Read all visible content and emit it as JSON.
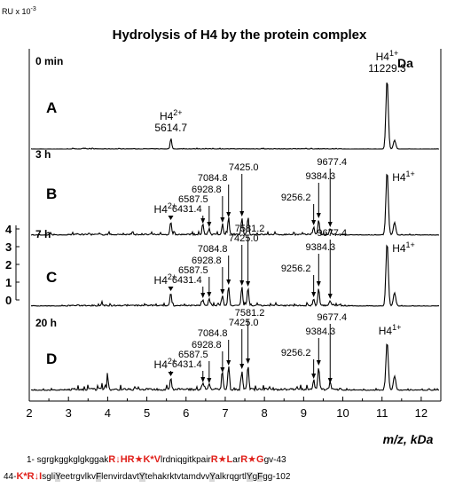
{
  "chart_data": {
    "type": "line",
    "title": "Hydrolysis of H4 by the protein complex",
    "ylabel": "RU x 10",
    "ylabel_exp": "-3",
    "units_label": "Da",
    "xlabel": "m/z, kDa",
    "xlim": [
      2,
      12.5
    ],
    "xticks": [
      2,
      3,
      4,
      5,
      6,
      7,
      8,
      9,
      10,
      11,
      12
    ],
    "xtick_labels": [
      "2",
      "3",
      "4",
      "5",
      "6",
      "7",
      "8",
      "9",
      "10",
      "11",
      "12"
    ],
    "scale_bar": {
      "ticks": [
        0,
        1,
        2,
        3,
        4
      ],
      "labels": [
        "0",
        "1",
        "2",
        "3",
        "4"
      ]
    },
    "panels": [
      {
        "letter": "A",
        "time": "0 min",
        "peaks": [
          {
            "x": 5.615,
            "height": 0.6,
            "w": 0.02
          },
          {
            "x": 11.13,
            "height": 3.95,
            "w": 0.03
          },
          {
            "x": 11.32,
            "height": 0.5,
            "w": 0.03
          }
        ],
        "peak_labels": [
          {
            "text": "H4",
            "sup": "2+",
            "x": 5.615,
            "lines": [
              "5614.7"
            ]
          },
          {
            "text": "H4",
            "sup": "1+",
            "x": 11.13,
            "lines": [
              "11229.3"
            ],
            "big": true
          }
        ],
        "arrows": []
      },
      {
        "letter": "B",
        "time": "3 h",
        "peaks": [
          {
            "x": 2.55,
            "height": 0.18,
            "w": 0.01
          },
          {
            "x": 5.61,
            "height": 0.75,
            "w": 0.02
          },
          {
            "x": 6.43,
            "height": 0.55,
            "w": 0.02
          },
          {
            "x": 6.59,
            "height": 0.35,
            "w": 0.02
          },
          {
            "x": 6.93,
            "height": 0.6,
            "w": 0.02
          },
          {
            "x": 7.085,
            "height": 0.9,
            "w": 0.02
          },
          {
            "x": 7.425,
            "height": 0.95,
            "w": 0.02
          },
          {
            "x": 7.58,
            "height": 0.9,
            "w": 0.02
          },
          {
            "x": 9.256,
            "height": 0.45,
            "w": 0.02
          },
          {
            "x": 9.384,
            "height": 0.85,
            "w": 0.02
          },
          {
            "x": 9.677,
            "height": 0.35,
            "w": 0.02
          },
          {
            "x": 11.13,
            "height": 3.6,
            "w": 0.03
          },
          {
            "x": 11.32,
            "height": 0.7,
            "w": 0.03
          }
        ],
        "peak_labels": [
          {
            "text": "H4",
            "sup": "2+",
            "x": 5.47,
            "dy": 0
          },
          {
            "text": "H4",
            "sup": "1+",
            "x": 11.55,
            "dy": 0
          }
        ],
        "arrows": [
          {
            "label": "6431.4",
            "x": 6.43
          },
          {
            "label": "6587.5",
            "x": 6.59
          },
          {
            "label": "6928.8",
            "x": 6.93
          },
          {
            "label": "7084.8",
            "x": 7.085
          },
          {
            "label": "7425.0",
            "x": 7.425
          },
          {
            "label": "9256.2",
            "x": 9.256
          },
          {
            "label": "9384.3",
            "x": 9.384
          },
          {
            "label": "9677.4",
            "x": 9.677
          }
        ]
      },
      {
        "letter": "C",
        "time": "7 h",
        "peaks": [
          {
            "x": 3.85,
            "height": 0.3,
            "w": 0.01
          },
          {
            "x": 5.61,
            "height": 0.75,
            "w": 0.02
          },
          {
            "x": 6.43,
            "height": 0.35,
            "w": 0.02
          },
          {
            "x": 6.59,
            "height": 0.4,
            "w": 0.02
          },
          {
            "x": 6.93,
            "height": 0.55,
            "w": 0.02
          },
          {
            "x": 7.085,
            "height": 1.1,
            "w": 0.02
          },
          {
            "x": 7.425,
            "height": 1.05,
            "w": 0.02
          },
          {
            "x": 7.58,
            "height": 1.0,
            "w": 0.02
          },
          {
            "x": 9.256,
            "height": 0.4,
            "w": 0.02
          },
          {
            "x": 9.384,
            "height": 1.0,
            "w": 0.02
          },
          {
            "x": 9.677,
            "height": 0.3,
            "w": 0.02
          },
          {
            "x": 11.13,
            "height": 3.6,
            "w": 0.03
          },
          {
            "x": 11.32,
            "height": 0.75,
            "w": 0.03
          }
        ],
        "peak_labels": [
          {
            "text": "H4",
            "sup": "2+",
            "x": 5.47
          },
          {
            "text": "H4",
            "sup": "1+",
            "x": 11.55
          }
        ],
        "arrows": [
          {
            "label": "6431.4",
            "x": 6.43
          },
          {
            "label": "6587.5",
            "x": 6.59
          },
          {
            "label": "6928.8",
            "x": 6.93
          },
          {
            "label": "7084.8",
            "x": 7.085
          },
          {
            "label": "7425.0",
            "x": 7.425
          },
          {
            "label": "7581.2",
            "x": 7.58
          },
          {
            "label": "9256.2",
            "x": 9.256
          },
          {
            "label": "9384.3",
            "x": 9.384
          },
          {
            "label": "9677.4",
            "x": 9.677
          }
        ]
      },
      {
        "letter": "D",
        "time": "20 h",
        "peaks": [
          {
            "x": 3.75,
            "height": 0.3,
            "w": 0.01
          },
          {
            "x": 3.85,
            "height": 0.45,
            "w": 0.01
          },
          {
            "x": 4.0,
            "height": 1.3,
            "w": 0.01
          },
          {
            "x": 4.7,
            "height": 0.25,
            "w": 0.01
          },
          {
            "x": 5.61,
            "height": 0.7,
            "w": 0.02
          },
          {
            "x": 6.43,
            "height": 0.35,
            "w": 0.02
          },
          {
            "x": 6.59,
            "height": 0.3,
            "w": 0.02
          },
          {
            "x": 6.93,
            "height": 0.9,
            "w": 0.02
          },
          {
            "x": 7.085,
            "height": 1.3,
            "w": 0.02
          },
          {
            "x": 7.425,
            "height": 1.1,
            "w": 0.02
          },
          {
            "x": 7.58,
            "height": 1.4,
            "w": 0.02
          },
          {
            "x": 9.256,
            "height": 0.55,
            "w": 0.02
          },
          {
            "x": 9.384,
            "height": 1.3,
            "w": 0.02
          },
          {
            "x": 9.677,
            "height": 0.3,
            "w": 0.02
          },
          {
            "x": 11.13,
            "height": 2.75,
            "w": 0.03
          },
          {
            "x": 11.32,
            "height": 0.8,
            "w": 0.03
          }
        ],
        "peak_labels": [
          {
            "text": "H4",
            "sup": "2+",
            "x": 5.47
          },
          {
            "text": "H4",
            "sup": "1+",
            "x": 11.2
          }
        ],
        "arrows": [
          {
            "label": "6431.4",
            "x": 6.43
          },
          {
            "label": "6587.5",
            "x": 6.59
          },
          {
            "label": "6928.8",
            "x": 6.93
          },
          {
            "label": "7084.8",
            "x": 7.085
          },
          {
            "label": "7425.0",
            "x": 7.425
          },
          {
            "label": "7581.2",
            "x": 7.58
          },
          {
            "label": "9256.2",
            "x": 9.256
          },
          {
            "label": "9384.3",
            "x": 9.384
          },
          {
            "label": "9677.4",
            "x": 9.677
          }
        ]
      }
    ]
  },
  "sequence": {
    "line1": [
      {
        "t": "1-  sgrgkggkglgkggak",
        "s": "n"
      },
      {
        "t": "R↓HR★K*V",
        "s": "r"
      },
      {
        "t": "lrdniqgitkpair",
        "s": "n"
      },
      {
        "t": "R★L",
        "s": "r"
      },
      {
        "t": "ar",
        "s": "n"
      },
      {
        "t": "R★G",
        "s": "r"
      },
      {
        "t": "gv-43",
        "s": "n"
      }
    ],
    "line2": [
      {
        "t": "44-",
        "s": "n"
      },
      {
        "t": "K*R↓I",
        "s": "r"
      },
      {
        "t": "sgli",
        "s": "n"
      },
      {
        "t": "Y",
        "s": "h"
      },
      {
        "t": "eetrgvlkv",
        "s": "n"
      },
      {
        "t": "F",
        "s": "h"
      },
      {
        "t": "lenvirdavt",
        "s": "n"
      },
      {
        "t": "Y",
        "s": "h"
      },
      {
        "t": "tehakrktvtamdvv",
        "s": "n"
      },
      {
        "t": "Y",
        "s": "h"
      },
      {
        "t": "alkrqgrtl",
        "s": "n"
      },
      {
        "t": "Y",
        "s": "h"
      },
      {
        "t": "g",
        "s": "n"
      },
      {
        "t": "F",
        "s": "h"
      },
      {
        "t": "gg-102",
        "s": "n"
      }
    ]
  }
}
